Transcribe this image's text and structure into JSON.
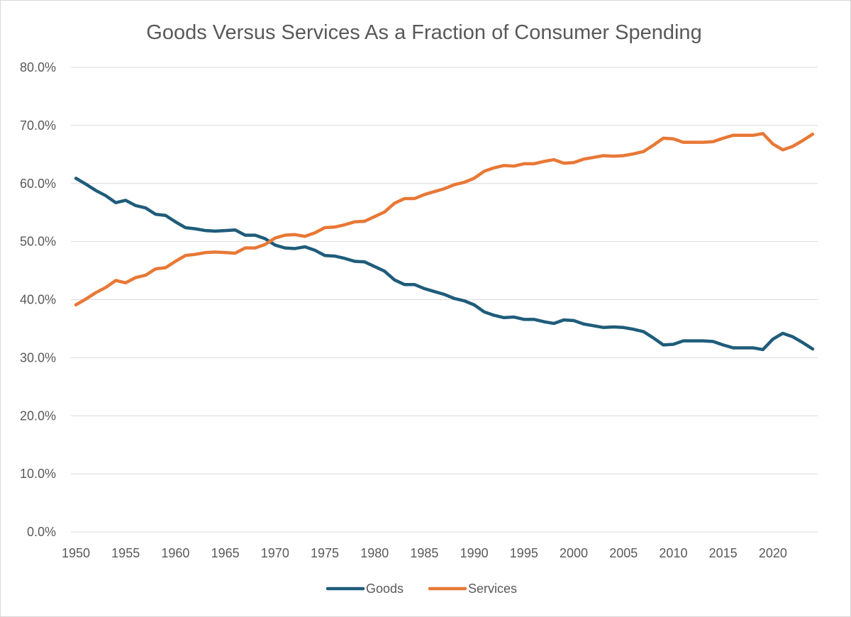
{
  "chart_data": {
    "type": "line",
    "title": "Goods Versus Services As a Fraction of Consumer Spending",
    "xlabel": "",
    "ylabel": "",
    "ylim": [
      0,
      80
    ],
    "xlim": [
      1950,
      2024
    ],
    "y_ticks": [
      "0.0%",
      "10.0%",
      "20.0%",
      "30.0%",
      "40.0%",
      "50.0%",
      "60.0%",
      "70.0%",
      "80.0%"
    ],
    "x_ticks": [
      "1950",
      "1955",
      "1960",
      "1965",
      "1970",
      "1975",
      "1980",
      "1985",
      "1990",
      "1995",
      "2000",
      "2005",
      "2010",
      "2015",
      "2020"
    ],
    "grid": true,
    "legend_position": "bottom",
    "x": [
      1950,
      1951,
      1952,
      1953,
      1954,
      1955,
      1956,
      1957,
      1958,
      1959,
      1960,
      1961,
      1962,
      1963,
      1964,
      1965,
      1966,
      1967,
      1968,
      1969,
      1970,
      1971,
      1972,
      1973,
      1974,
      1975,
      1976,
      1977,
      1978,
      1979,
      1980,
      1981,
      1982,
      1983,
      1984,
      1985,
      1986,
      1987,
      1988,
      1989,
      1990,
      1991,
      1992,
      1993,
      1994,
      1995,
      1996,
      1997,
      1998,
      1999,
      2000,
      2001,
      2002,
      2003,
      2004,
      2005,
      2006,
      2007,
      2008,
      2009,
      2010,
      2011,
      2012,
      2013,
      2014,
      2015,
      2016,
      2017,
      2018,
      2019,
      2020,
      2021,
      2022,
      2023,
      2024
    ],
    "series": [
      {
        "name": "Goods",
        "color": "#1f5c7a",
        "values": [
          60.9,
          59.9,
          58.8,
          57.9,
          56.7,
          57.1,
          56.2,
          55.8,
          54.7,
          54.5,
          53.4,
          52.4,
          52.2,
          51.9,
          51.8,
          51.9,
          52.0,
          51.1,
          51.1,
          50.5,
          49.4,
          48.9,
          48.8,
          49.1,
          48.5,
          47.6,
          47.5,
          47.1,
          46.6,
          46.5,
          45.7,
          44.9,
          43.4,
          42.6,
          42.6,
          41.9,
          41.4,
          40.9,
          40.2,
          39.8,
          39.1,
          37.9,
          37.3,
          36.9,
          37.0,
          36.6,
          36.6,
          36.2,
          35.9,
          36.5,
          36.4,
          35.8,
          35.5,
          35.2,
          35.3,
          35.2,
          34.9,
          34.5,
          33.4,
          32.2,
          32.3,
          32.9,
          32.9,
          32.9,
          32.8,
          32.2,
          31.7,
          31.7,
          31.7,
          31.4,
          33.2,
          34.2,
          33.6,
          32.6,
          31.5
        ]
      },
      {
        "name": "Services",
        "color": "#e87836",
        "values": [
          39.1,
          40.1,
          41.2,
          42.1,
          43.3,
          42.9,
          43.8,
          44.2,
          45.3,
          45.5,
          46.6,
          47.6,
          47.8,
          48.1,
          48.2,
          48.1,
          48.0,
          48.9,
          48.9,
          49.5,
          50.6,
          51.1,
          51.2,
          50.9,
          51.5,
          52.4,
          52.5,
          52.9,
          53.4,
          53.5,
          54.3,
          55.1,
          56.6,
          57.4,
          57.4,
          58.1,
          58.6,
          59.1,
          59.8,
          60.2,
          60.9,
          62.1,
          62.7,
          63.1,
          63.0,
          63.4,
          63.4,
          63.8,
          64.1,
          63.5,
          63.6,
          64.2,
          64.5,
          64.8,
          64.7,
          64.8,
          65.1,
          65.5,
          66.6,
          67.8,
          67.7,
          67.1,
          67.1,
          67.1,
          67.2,
          67.8,
          68.3,
          68.3,
          68.3,
          68.6,
          66.8,
          65.8,
          66.4,
          67.4,
          68.5
        ]
      }
    ]
  }
}
